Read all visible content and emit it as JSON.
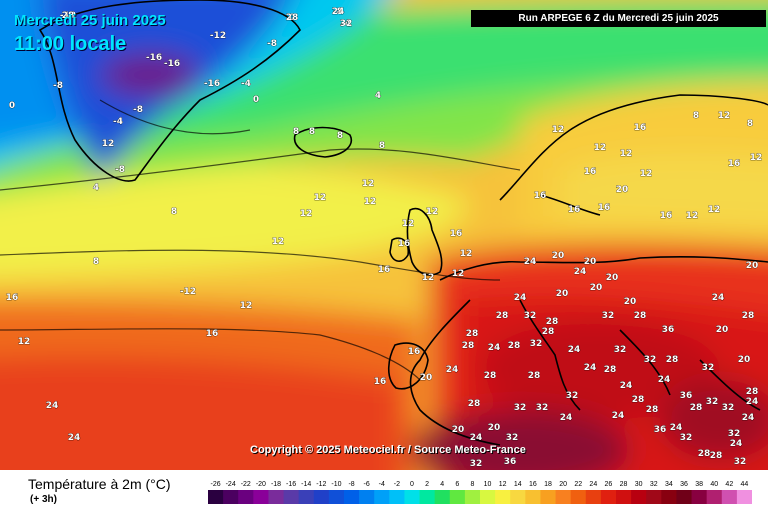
{
  "header": {
    "date": "Mercredi 25 juin 2025",
    "time": "11:00 locale",
    "run": "Run ARPEGE 6 Z du Mercredi 25 juin 2025"
  },
  "copyright": "Copyright © 2025 Meteociel.fr / Source Meteo-France",
  "legend": {
    "title": "Température à 2m (°C)",
    "subtitle": "(+ 3h)",
    "ticks": [
      "-26",
      "-24",
      "-22",
      "-20",
      "-18",
      "-16",
      "-14",
      "-12",
      "-10",
      "-8",
      "-6",
      "-4",
      "-2",
      "0",
      "2",
      "4",
      "6",
      "8",
      "10",
      "12",
      "14",
      "16",
      "18",
      "20",
      "22",
      "24",
      "26",
      "28",
      "30",
      "32",
      "34",
      "36",
      "38",
      "40",
      "42",
      "44"
    ],
    "colors": [
      "#2a0040",
      "#4b0060",
      "#6a007f",
      "#8a0099",
      "#7a2c9b",
      "#5a3aa8",
      "#3a40b8",
      "#2040c8",
      "#1050d8",
      "#0060e8",
      "#0080f0",
      "#00a0f8",
      "#00c0f8",
      "#00e0e8",
      "#00e8a0",
      "#20e060",
      "#60e840",
      "#a0f040",
      "#d8f840",
      "#f8f040",
      "#f8d840",
      "#f8c030",
      "#f8a020",
      "#f88020",
      "#f06010",
      "#e84010",
      "#e02010",
      "#d01010",
      "#b80010",
      "#a00818",
      "#880010",
      "#700018",
      "#880040",
      "#b02070",
      "#d050b0",
      "#f090e0"
    ]
  },
  "map_labels": [
    {
      "t": "-12"
    },
    {
      "t": "-8"
    },
    {
      "t": "-4"
    },
    {
      "t": "0"
    },
    {
      "t": "-12"
    },
    {
      "t": "-8"
    },
    {
      "t": "-16"
    },
    {
      "t": "-16"
    },
    {
      "t": "-16"
    },
    {
      "t": "-4"
    },
    {
      "t": "0"
    },
    {
      "t": "-8"
    },
    {
      "t": "-4"
    },
    {
      "t": "-8"
    },
    {
      "t": "12"
    },
    {
      "t": "-8"
    },
    {
      "t": "0"
    },
    {
      "t": "4"
    },
    {
      "t": "8"
    },
    {
      "t": "8"
    },
    {
      "t": "8"
    },
    {
      "t": "4"
    },
    {
      "t": "8"
    },
    {
      "t": "12"
    },
    {
      "t": "12"
    },
    {
      "t": "12"
    },
    {
      "t": "12"
    },
    {
      "t": "8"
    },
    {
      "t": "12"
    },
    {
      "t": "12"
    },
    {
      "t": "16"
    },
    {
      "t": "12"
    },
    {
      "t": "16"
    },
    {
      "t": "16"
    },
    {
      "t": "12"
    },
    {
      "t": "12"
    },
    {
      "t": "12"
    },
    {
      "t": "12"
    },
    {
      "t": "16"
    },
    {
      "t": "20"
    },
    {
      "t": "16"
    },
    {
      "t": "16"
    },
    {
      "t": "16"
    },
    {
      "t": "24"
    },
    {
      "t": "20"
    },
    {
      "t": "24"
    },
    {
      "t": "20"
    },
    {
      "t": "20"
    },
    {
      "t": "20"
    },
    {
      "t": "24"
    },
    {
      "t": "28"
    },
    {
      "t": "28"
    },
    {
      "t": "32"
    },
    {
      "t": "28"
    },
    {
      "t": "24"
    },
    {
      "t": "28"
    },
    {
      "t": "24"
    },
    {
      "t": "28"
    },
    {
      "t": "32"
    },
    {
      "t": "28"
    },
    {
      "t": "28"
    },
    {
      "t": "32"
    },
    {
      "t": "24"
    },
    {
      "t": "28"
    },
    {
      "t": "28"
    },
    {
      "t": "32"
    },
    {
      "t": "24"
    },
    {
      "t": "28"
    },
    {
      "t": "24"
    },
    {
      "t": "32"
    },
    {
      "t": "24"
    },
    {
      "t": "28"
    },
    {
      "t": "32"
    },
    {
      "t": "36"
    },
    {
      "t": "32"
    },
    {
      "t": "32"
    },
    {
      "t": "28"
    },
    {
      "t": "32"
    },
    {
      "t": "28"
    },
    {
      "t": "24"
    },
    {
      "t": "24"
    },
    {
      "t": "20"
    },
    {
      "t": "20"
    },
    {
      "t": "16"
    },
    {
      "t": "20"
    },
    {
      "t": "16"
    },
    {
      "t": "12"
    },
    {
      "t": "16"
    },
    {
      "t": "8"
    },
    {
      "t": "-12"
    },
    {
      "t": "16"
    },
    {
      "t": "12"
    },
    {
      "t": "24"
    },
    {
      "t": "24"
    },
    {
      "t": "28"
    },
    {
      "t": "32"
    },
    {
      "t": "32"
    },
    {
      "t": "24"
    },
    {
      "t": "20"
    },
    {
      "t": "24"
    },
    {
      "t": "20"
    },
    {
      "t": "32"
    },
    {
      "t": "36"
    },
    {
      "t": "32"
    },
    {
      "t": "32"
    },
    {
      "t": "28"
    },
    {
      "t": "28"
    },
    {
      "t": "36"
    },
    {
      "t": "32"
    },
    {
      "t": "24"
    },
    {
      "t": "24"
    },
    {
      "t": "28"
    },
    {
      "t": "32"
    },
    {
      "t": "28"
    },
    {
      "t": "36"
    },
    {
      "t": "16"
    },
    {
      "t": "12"
    },
    {
      "t": "12"
    },
    {
      "t": "12"
    },
    {
      "t": "16"
    },
    {
      "t": "12"
    },
    {
      "t": "12"
    },
    {
      "t": "16"
    },
    {
      "t": "12"
    },
    {
      "t": "8"
    },
    {
      "t": "12"
    },
    {
      "t": "8"
    },
    {
      "t": "20"
    },
    {
      "t": "24"
    },
    {
      "t": "28"
    },
    {
      "t": "20"
    },
    {
      "t": "20"
    },
    {
      "t": "24"
    },
    {
      "t": "28"
    },
    {
      "t": "24"
    },
    {
      "t": "32"
    },
    {
      "t": "28"
    }
  ]
}
